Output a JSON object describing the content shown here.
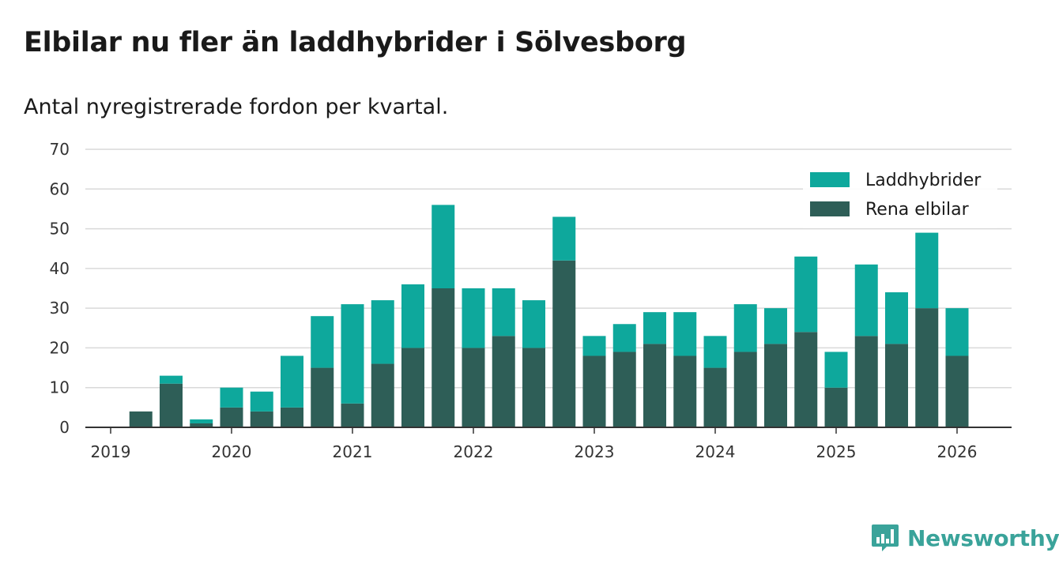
{
  "title": "Elbilar nu fler än laddhybrider i Sölvesborg",
  "subtitle": "Antal nyregistrerade fordon per kvartal.",
  "brand": {
    "name": "Newsworthy",
    "logo_icon": "bar-chart-speech-icon",
    "color": "#3aa39a"
  },
  "colors": {
    "phev": "#0ea89c",
    "bev": "#2e5e57",
    "grid": "#d9d9d9",
    "axis": "#333333"
  },
  "chart_data": {
    "type": "bar",
    "stacked": true,
    "title": "Elbilar nu fler än laddhybrider i Sölvesborg",
    "subtitle": "Antal nyregistrerade fordon per kvartal.",
    "xlabel": "",
    "ylabel": "",
    "ylim": [
      0,
      70
    ],
    "yticks": [
      0,
      10,
      20,
      30,
      40,
      50,
      60,
      70
    ],
    "xticks": [
      "2019",
      "2020",
      "2021",
      "2022",
      "2023",
      "2024",
      "2025",
      "2026"
    ],
    "grid": true,
    "legend_position": "top-right",
    "categories": [
      "2019 Q1",
      "2019 Q2",
      "2019 Q3",
      "2019 Q4",
      "2020 Q1",
      "2020 Q2",
      "2020 Q3",
      "2020 Q4",
      "2021 Q1",
      "2021 Q2",
      "2021 Q3",
      "2021 Q4",
      "2022 Q1",
      "2022 Q2",
      "2022 Q3",
      "2022 Q4",
      "2023 Q1",
      "2023 Q2",
      "2023 Q3",
      "2023 Q4",
      "2024 Q1",
      "2024 Q2",
      "2024 Q3",
      "2024 Q4",
      "2025 Q1",
      "2025 Q2",
      "2025 Q3",
      "2025 Q4"
    ],
    "series": [
      {
        "name": "Rena elbilar",
        "color": "#2e5e57",
        "values": [
          4,
          11,
          1,
          5,
          4,
          5,
          15,
          6,
          16,
          20,
          35,
          20,
          23,
          20,
          42,
          18,
          19,
          21,
          18,
          15,
          19,
          21,
          24,
          10,
          23,
          21,
          30,
          18
        ]
      },
      {
        "name": "Laddhybrider",
        "color": "#0ea89c",
        "values": [
          0,
          2,
          1,
          5,
          5,
          13,
          13,
          25,
          16,
          16,
          21,
          15,
          12,
          12,
          11,
          5,
          7,
          8,
          11,
          8,
          12,
          9,
          19,
          9,
          18,
          13,
          19,
          12
        ]
      }
    ],
    "legend": [
      "Laddhybrider",
      "Rena elbilar"
    ]
  }
}
